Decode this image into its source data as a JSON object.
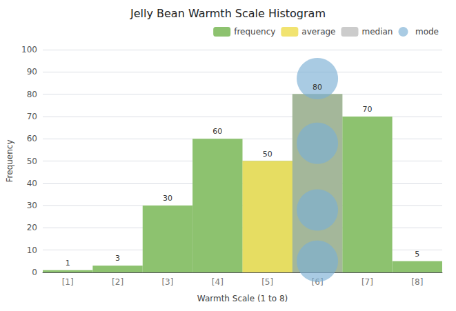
{
  "chart_data": {
    "type": "bar",
    "title": "Jelly Bean Warmth Scale Histogram",
    "xlabel": "Warmth Scale (1 to 8)",
    "ylabel": "Frequency",
    "categories": [
      "[1]",
      "[2]",
      "[3]",
      "[4]",
      "[5]",
      "[6]",
      "[7]",
      "[8]"
    ],
    "series": [
      {
        "name": "frequency",
        "type": "bar",
        "color": "#8dc26f",
        "data_labels": true,
        "values": [
          1,
          3,
          30,
          60,
          50,
          80,
          70,
          5
        ]
      },
      {
        "name": "average",
        "type": "bar",
        "color": "#f0e060",
        "values": [
          null,
          null,
          null,
          null,
          50,
          null,
          null,
          null
        ]
      },
      {
        "name": "median",
        "type": "bar",
        "color": "#b0b0b0",
        "values": [
          null,
          null,
          null,
          null,
          null,
          80,
          null,
          null
        ]
      },
      {
        "name": "mode",
        "type": "scatter",
        "color": "#7bafd4",
        "marker": "circle",
        "x": [
          "[6]",
          "[6]",
          "[6]",
          "[6]"
        ],
        "values": [
          5,
          28,
          58,
          87
        ]
      }
    ],
    "ylim": [
      0,
      100
    ],
    "yticks": [
      0,
      10,
      20,
      30,
      40,
      50,
      60,
      70,
      80,
      90,
      100
    ],
    "grid": true,
    "legend": "upper right"
  }
}
